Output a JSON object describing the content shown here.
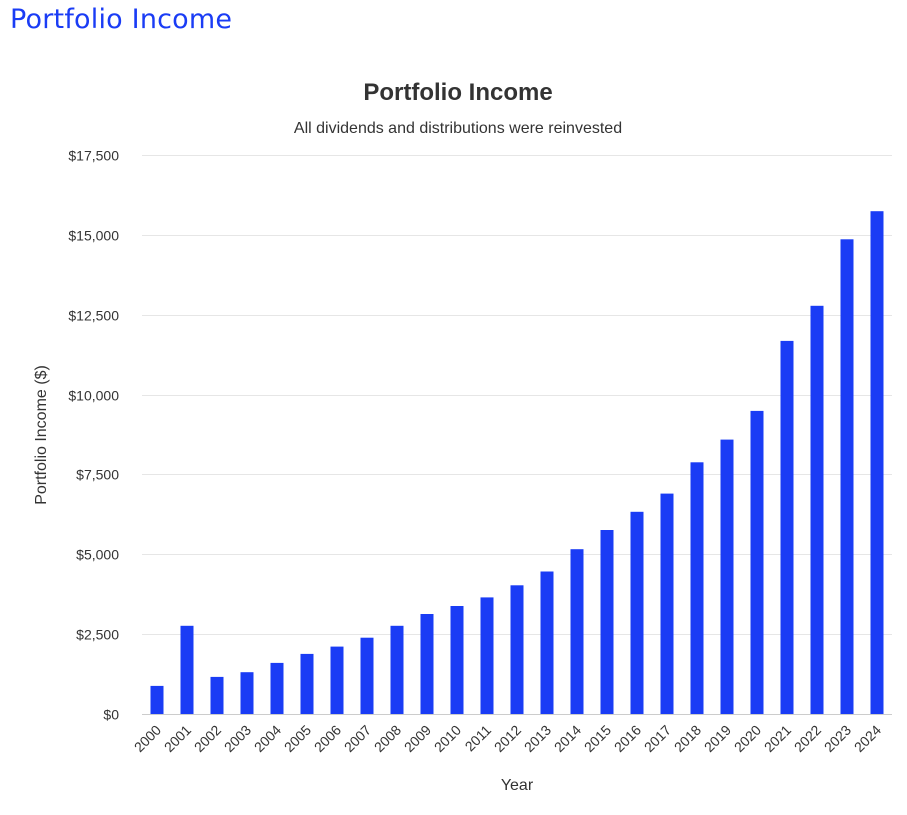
{
  "page": {
    "heading": "Portfolio Income"
  },
  "chart_data": {
    "type": "bar",
    "title": "Portfolio Income",
    "subtitle": "All dividends and distributions were reinvested",
    "xlabel": "Year",
    "ylabel": "Portfolio Income ($)",
    "ylim": [
      0,
      17500
    ],
    "yticks": [
      0,
      2500,
      5000,
      7500,
      10000,
      12500,
      15000,
      17500
    ],
    "ytick_labels": [
      "$0",
      "$2,500",
      "$5,000",
      "$7,500",
      "$10,000",
      "$12,500",
      "$15,000",
      "$17,500"
    ],
    "grid": true,
    "bar_color": "#1a3cf5",
    "categories": [
      "2000",
      "2001",
      "2002",
      "2003",
      "2004",
      "2005",
      "2006",
      "2007",
      "2008",
      "2009",
      "2010",
      "2011",
      "2012",
      "2013",
      "2014",
      "2015",
      "2016",
      "2017",
      "2018",
      "2019",
      "2020",
      "2021",
      "2022",
      "2023",
      "2024"
    ],
    "values": [
      880,
      2760,
      1160,
      1310,
      1600,
      1880,
      2110,
      2390,
      2760,
      3130,
      3380,
      3650,
      4030,
      4460,
      5160,
      5760,
      6330,
      6900,
      7880,
      8590,
      9490,
      11680,
      12780,
      14860,
      15740
    ]
  }
}
